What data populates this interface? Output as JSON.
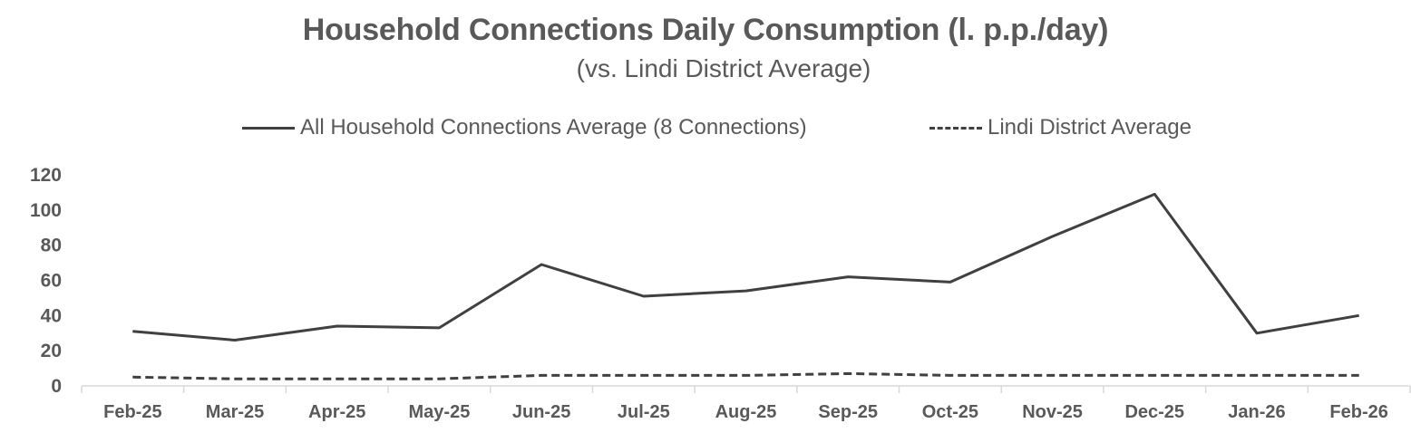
{
  "chart_data": {
    "type": "line",
    "title": "Household Connections Daily Consumption (l. p.p./day)",
    "subtitle": "(vs. Lindi District Average)",
    "xlabel": "",
    "ylabel": "",
    "ylim": [
      0,
      120
    ],
    "yticks": [
      "0",
      "20",
      "40",
      "60",
      "80",
      "100",
      "120"
    ],
    "categories": [
      "Feb-25",
      "Mar-25",
      "Apr-25",
      "May-25",
      "Jun-25",
      "Jul-25",
      "Aug-25",
      "Sep-25",
      "Oct-25",
      "Nov-25",
      "Dec-25",
      "Jan-26",
      "Feb-26"
    ],
    "legend_position": "top",
    "grid": false,
    "series": [
      {
        "name": "All Household Connections Average (8 Connections)",
        "style": "solid",
        "color": "#404040",
        "values": [
          31,
          26,
          34,
          33,
          69,
          51,
          54,
          62,
          59,
          85,
          109,
          30,
          40
        ]
      },
      {
        "name": "Lindi District Average",
        "style": "dashed",
        "color": "#404040",
        "values": [
          5,
          4,
          4,
          4,
          6,
          6,
          6,
          7,
          6,
          6,
          6,
          6,
          6
        ]
      }
    ]
  }
}
